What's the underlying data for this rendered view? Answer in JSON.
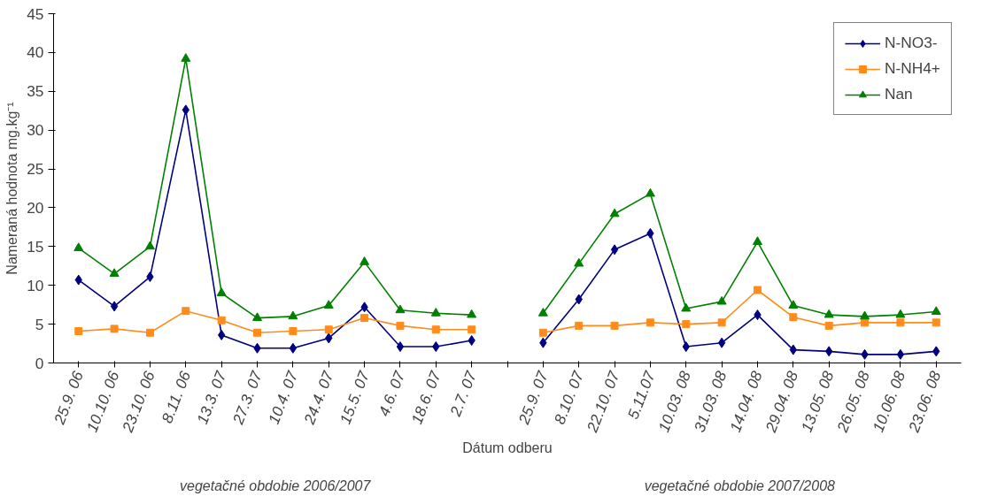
{
  "chart_data": {
    "type": "line",
    "xlabel": "Dátum odberu",
    "ylabel": "Nameraná hodnota mg.kg⁻¹",
    "categories": [
      "25.9. 06",
      "10.10. 06",
      "23.10. 06",
      "8.11. 06",
      "13.3. 07",
      "27.3. 07",
      "10.4. 07",
      "24.4. 07",
      "15.5. 07",
      "4.6. 07",
      "18.6. 07",
      "2.7. 07",
      null,
      "25.9. 07",
      "8.10. 07",
      "22.10. 07",
      "5.11.07",
      "10.03. 08",
      "31.03. 08",
      "14.04. 08",
      "29.04. 08",
      "13.05. 08",
      "26.05. 08",
      "10.06. 08",
      "23.06. 08"
    ],
    "series": [
      {
        "name": "N-NO3-",
        "color": "#000080",
        "marker": "diamond",
        "values": [
          10.7,
          7.3,
          11.1,
          32.6,
          3.6,
          1.9,
          1.9,
          3.2,
          7.2,
          2.1,
          2.1,
          2.9,
          null,
          2.6,
          8.2,
          14.6,
          16.7,
          2.1,
          2.6,
          6.2,
          1.7,
          1.5,
          1.1,
          1.1,
          1.5
        ]
      },
      {
        "name": "N-NH4+",
        "color": "#ff8c1a",
        "marker": "square",
        "values": [
          4.1,
          4.4,
          3.9,
          6.7,
          5.5,
          3.9,
          4.1,
          4.3,
          5.8,
          4.8,
          4.3,
          4.3,
          null,
          3.9,
          4.8,
          4.8,
          5.2,
          5.0,
          5.2,
          9.4,
          5.9,
          4.8,
          5.2,
          5.2,
          5.2
        ]
      },
      {
        "name": "Nan",
        "color": "#008000",
        "marker": "triangle",
        "values": [
          14.8,
          11.5,
          15.0,
          39.2,
          9.0,
          5.8,
          6.0,
          7.4,
          13.0,
          6.8,
          6.4,
          6.2,
          null,
          6.4,
          12.8,
          19.2,
          21.8,
          7.0,
          7.9,
          15.6,
          7.4,
          6.2,
          6.0,
          6.2,
          6.6
        ]
      }
    ],
    "ylim": [
      0,
      45
    ],
    "yticks": [
      0,
      5,
      10,
      15,
      20,
      25,
      30,
      35,
      40,
      45
    ],
    "grid": false,
    "legend": "top right",
    "line_style": "solid",
    "annotations": [
      "vegetačné obdobie 2006/2007",
      "vegetačné obdobie 2007/2008"
    ]
  }
}
